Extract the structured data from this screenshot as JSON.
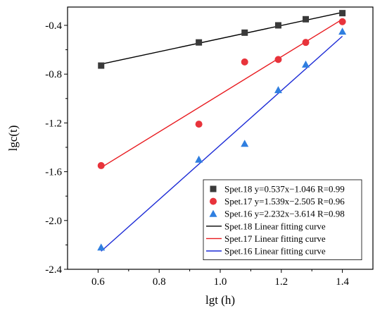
{
  "chart_data": {
    "type": "scatter",
    "title": "",
    "xlabel": "lgt (h)",
    "ylabel": "lgc(t)",
    "xlim": [
      0.5,
      1.5
    ],
    "ylim": [
      -2.4,
      -0.25
    ],
    "xticks": [
      0.6,
      0.8,
      1.0,
      1.2,
      1.4
    ],
    "xtick_labels": [
      "0.6",
      "0.8",
      "1.0",
      "1.2",
      "1.4"
    ],
    "yticks": [
      -2.4,
      -2.0,
      -1.6,
      -1.2,
      -0.8,
      -0.4
    ],
    "ytick_labels": [
      "-2.4",
      "-2.0",
      "-1.6",
      "-1.2",
      "-0.8",
      "-0.4"
    ],
    "grid": false,
    "legend_position": "bottom-right",
    "series": [
      {
        "name": "Spet.18 y=0.537x−1.046 R=0.99",
        "marker": "square",
        "color": "#3a3a3a",
        "x": [
          0.61,
          0.93,
          1.08,
          1.19,
          1.28,
          1.4
        ],
        "y": [
          -0.73,
          -0.54,
          -0.46,
          -0.4,
          -0.35,
          -0.3
        ]
      },
      {
        "name": "Spet.17 y=1.539x−2.505 R=0.96",
        "marker": "circle",
        "color": "#e8333b",
        "x": [
          0.61,
          0.93,
          1.08,
          1.19,
          1.28,
          1.4
        ],
        "y": [
          -1.55,
          -1.21,
          -0.7,
          -0.68,
          -0.54,
          -0.37
        ]
      },
      {
        "name": "Spet.16 y=2.232x−3.614 R=0.98",
        "marker": "triangle",
        "color": "#2f7fe0",
        "x": [
          0.61,
          0.93,
          1.08,
          1.19,
          1.28,
          1.4
        ],
        "y": [
          -2.22,
          -1.5,
          -1.37,
          -0.93,
          -0.72,
          -0.45
        ]
      }
    ],
    "fit_lines": [
      {
        "name": "Spet.18 Linear fitting curve",
        "color": "#000000",
        "x": [
          0.61,
          1.4
        ],
        "y": [
          -0.718,
          -0.294
        ]
      },
      {
        "name": "Spet.17 Linear fitting curve",
        "color": "#e8191e",
        "x": [
          0.61,
          1.4
        ],
        "y": [
          -1.566,
          -0.35
        ]
      },
      {
        "name": "Spet.16 Linear fitting curve",
        "color": "#1c2bd6",
        "x": [
          0.61,
          1.4
        ],
        "y": [
          -2.252,
          -0.489
        ]
      }
    ]
  }
}
